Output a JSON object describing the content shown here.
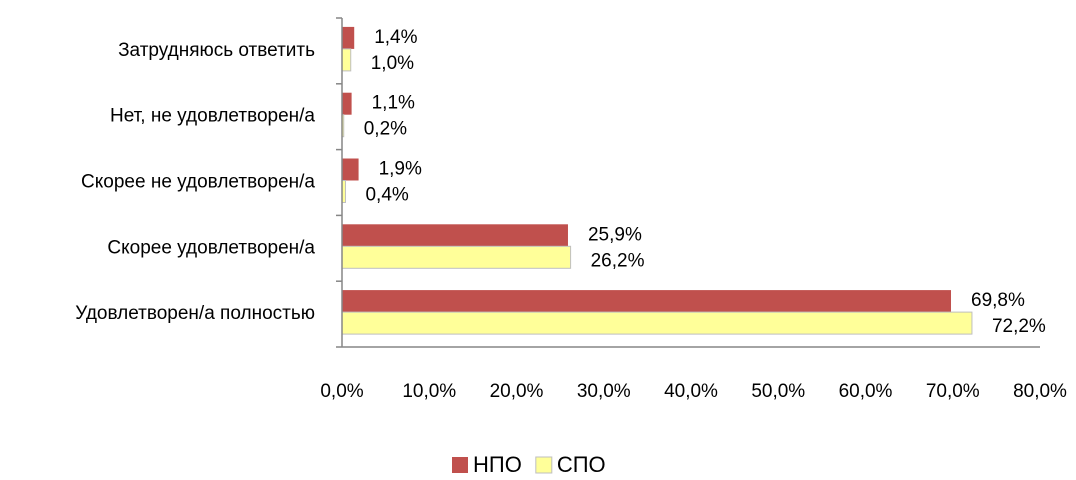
{
  "chart_data": {
    "type": "hbar",
    "categories": [
      "Затрудняюсь ответить",
      "Нет, не удовлетворен/а",
      "Скорее не удовлетворен/а",
      "Скорее удовлетворен/а",
      "Удовлетворен/а полностью"
    ],
    "series": [
      {
        "name": "НПО",
        "color": "#c0504d",
        "values": [
          1.4,
          1.1,
          1.9,
          25.9,
          69.8
        ],
        "value_labels": [
          "1,4%",
          "1,1%",
          "1,9%",
          "25,9%",
          "69,8%"
        ]
      },
      {
        "name": "СПО",
        "color": "#ffff99",
        "values": [
          1.0,
          0.2,
          0.4,
          26.2,
          72.2
        ],
        "value_labels": [
          "1,0%",
          "0,2%",
          "0,4%",
          "26,2%",
          "72,2%"
        ]
      }
    ],
    "xlim": [
      0,
      80
    ],
    "xticks": [
      {
        "value": 0,
        "label": "0,0%"
      },
      {
        "value": 10,
        "label": "10,0%"
      },
      {
        "value": 20,
        "label": "20,0%"
      },
      {
        "value": 30,
        "label": "30,0%"
      },
      {
        "value": 40,
        "label": "40,0%"
      },
      {
        "value": 50,
        "label": "50,0%"
      },
      {
        "value": 60,
        "label": "60,0%"
      },
      {
        "value": 70,
        "label": "70,0%"
      },
      {
        "value": 80,
        "label": "80,0%"
      }
    ],
    "legend": "bottom"
  }
}
